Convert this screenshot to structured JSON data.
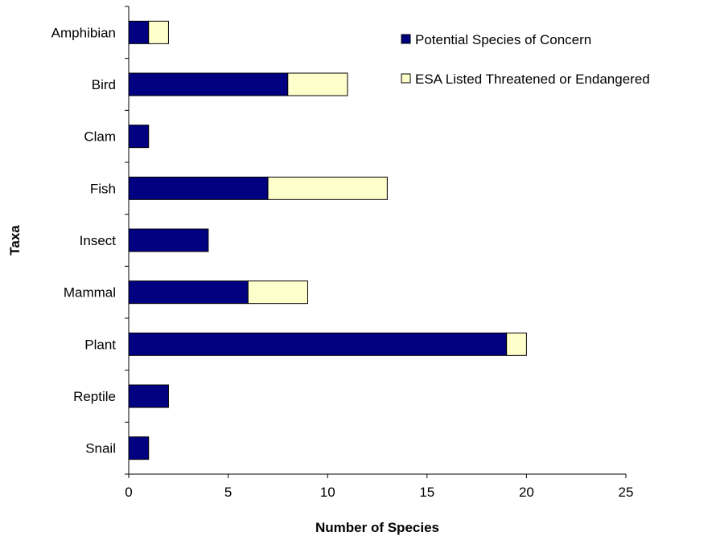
{
  "chart_data": {
    "type": "bar",
    "orientation": "horizontal",
    "stacked": true,
    "title": "",
    "xlabel": "Number of Species",
    "ylabel": "Taxa",
    "categories": [
      "Amphibian",
      "Bird",
      "Clam",
      "Fish",
      "Insect",
      "Mammal",
      "Plant",
      "Reptile",
      "Snail"
    ],
    "series": [
      {
        "name": "Potential Species of Concern",
        "values": [
          1,
          8,
          1,
          7,
          4,
          6,
          19,
          2,
          1
        ],
        "color": "#000080"
      },
      {
        "name": "ESA Listed Threatened or Endangered",
        "values": [
          1,
          3,
          0,
          6,
          0,
          3,
          1,
          0,
          0
        ],
        "color": "#ffffcc"
      }
    ],
    "xlim": [
      0,
      25
    ],
    "xticks": [
      0,
      5,
      10,
      15,
      20,
      25
    ],
    "grid": false,
    "legend_position": "top-right"
  }
}
